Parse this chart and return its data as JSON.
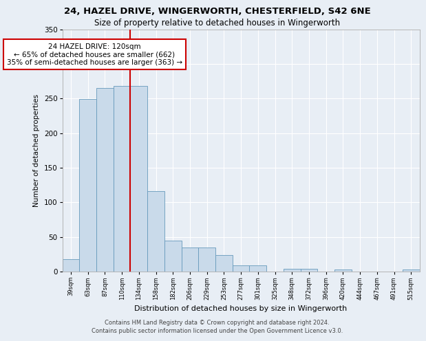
{
  "title_line1": "24, HAZEL DRIVE, WINGERWORTH, CHESTERFIELD, S42 6NE",
  "title_line2": "Size of property relative to detached houses in Wingerworth",
  "xlabel": "Distribution of detached houses by size in Wingerworth",
  "ylabel": "Number of detached properties",
  "footer_line1": "Contains HM Land Registry data © Crown copyright and database right 2024.",
  "footer_line2": "Contains public sector information licensed under the Open Government Licence v3.0.",
  "bin_labels": [
    "39sqm",
    "63sqm",
    "87sqm",
    "110sqm",
    "134sqm",
    "158sqm",
    "182sqm",
    "206sqm",
    "229sqm",
    "253sqm",
    "277sqm",
    "301sqm",
    "325sqm",
    "348sqm",
    "372sqm",
    "396sqm",
    "420sqm",
    "444sqm",
    "467sqm",
    "491sqm",
    "515sqm"
  ],
  "bar_values": [
    18,
    249,
    265,
    268,
    268,
    116,
    45,
    35,
    35,
    24,
    9,
    9,
    0,
    4,
    4,
    0,
    3,
    0,
    0,
    0,
    3
  ],
  "bar_color": "#c9daea",
  "bar_edge_color": "#6699bb",
  "property_bin_index": 3,
  "annotation_title": "24 HAZEL DRIVE: 120sqm",
  "annotation_line2": "← 65% of detached houses are smaller (662)",
  "annotation_line3": "35% of semi-detached houses are larger (363) →",
  "vline_color": "#cc0000",
  "annotation_box_color": "#ffffff",
  "annotation_box_edge": "#cc0000",
  "ylim": [
    0,
    350
  ],
  "yticks": [
    0,
    50,
    100,
    150,
    200,
    250,
    300,
    350
  ],
  "background_color": "#e8eef5",
  "plot_background": "#e8eef5",
  "grid_color": "#ffffff"
}
